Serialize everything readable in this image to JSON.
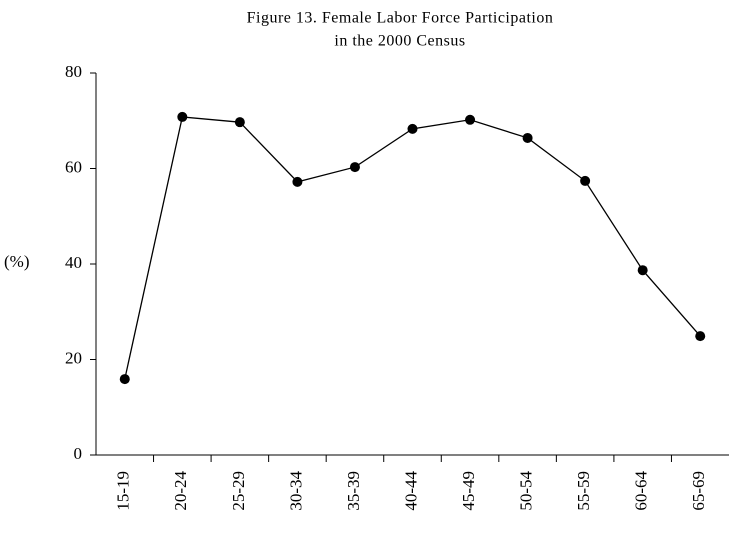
{
  "chart_data": {
    "type": "line",
    "title": [
      "Figure 13. Female Labor Force Participation",
      "in the 2000 Census"
    ],
    "y_label": "(%)",
    "categories": [
      "15-19",
      "20-24",
      "25-29",
      "30-34",
      "35-39",
      "40-44",
      "45-49",
      "50-54",
      "55-59",
      "60-64",
      "65-69"
    ],
    "values": [
      15.9,
      70.8,
      69.7,
      57.2,
      60.3,
      68.3,
      70.2,
      66.4,
      57.4,
      38.7,
      24.9
    ],
    "color": "#000000",
    "ylim": [
      0,
      80
    ],
    "yticks": [
      0,
      20,
      40,
      60,
      80
    ],
    "grid": false
  }
}
